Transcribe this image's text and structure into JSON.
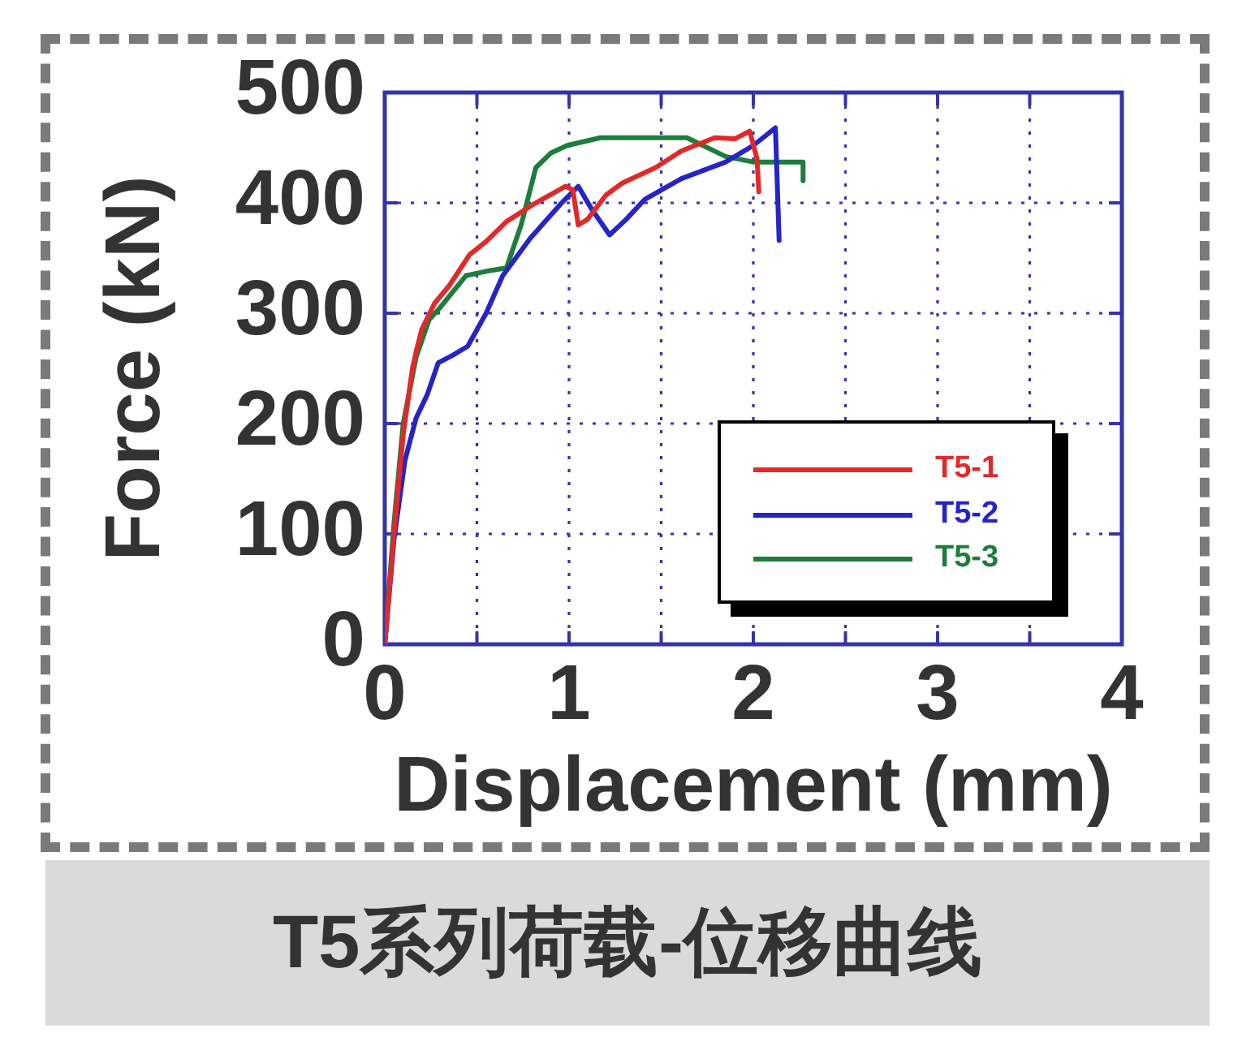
{
  "chart_data": {
    "type": "line",
    "title": "T5系列荷载-位移曲线",
    "xlabel": "Displacement (mm)",
    "ylabel": "Force (kN)",
    "xlim": [
      0,
      4
    ],
    "xticks": [
      0,
      {
        "value": 0.5,
        "label": null
      },
      1,
      {
        "value": 1.5,
        "label": null
      },
      2,
      {
        "value": 2.5,
        "label": null
      },
      3,
      {
        "value": 3.5,
        "label": null
      },
      4
    ],
    "ylim": [
      0,
      500
    ],
    "yticks": [
      0,
      100,
      200,
      300,
      400,
      500
    ],
    "grid": true,
    "legend": "bottom right",
    "line_style": "solid",
    "series": [
      {
        "name": "T5-1",
        "color": "#e02a2a",
        "x": [
          0,
          0.05,
          0.1,
          0.15,
          0.17,
          0.2,
          0.27,
          0.35,
          0.46,
          0.55,
          0.66,
          0.8,
          0.98,
          1.02,
          1.05,
          1.1,
          1.2,
          1.29,
          1.47,
          1.61,
          1.79,
          1.9,
          1.98,
          2.02,
          2.03
        ],
        "values": [
          0,
          100,
          190,
          250,
          265,
          285,
          309,
          325,
          353,
          365,
          383,
          398,
          415,
          412,
          380,
          385,
          407,
          418,
          432,
          447,
          459,
          458,
          465,
          440,
          410
        ]
      },
      {
        "name": "T5-2",
        "color": "#2424c8",
        "x": [
          0,
          0.05,
          0.11,
          0.17,
          0.23,
          0.29,
          0.37,
          0.45,
          0.55,
          0.64,
          0.79,
          0.96,
          1.05,
          1.12,
          1.22,
          1.31,
          1.41,
          1.61,
          1.85,
          2.0,
          2.12,
          2.14
        ],
        "values": [
          0,
          95,
          167,
          205,
          226,
          255,
          262,
          270,
          300,
          334,
          368,
          400,
          415,
          395,
          371,
          385,
          403,
          422,
          437,
          452,
          468,
          366
        ]
      },
      {
        "name": "T5-3",
        "color": "#1e7d3c",
        "x": [
          0,
          0.05,
          0.1,
          0.17,
          0.24,
          0.3,
          0.44,
          0.55,
          0.66,
          0.74,
          0.82,
          0.9,
          0.99,
          1.17,
          1.4,
          1.64,
          1.85,
          2.0,
          2.27,
          2.27
        ],
        "values": [
          0,
          110,
          200,
          260,
          294,
          305,
          334,
          338,
          341,
          380,
          432,
          445,
          452,
          459,
          459,
          459,
          442,
          437,
          437,
          420
        ]
      }
    ]
  }
}
